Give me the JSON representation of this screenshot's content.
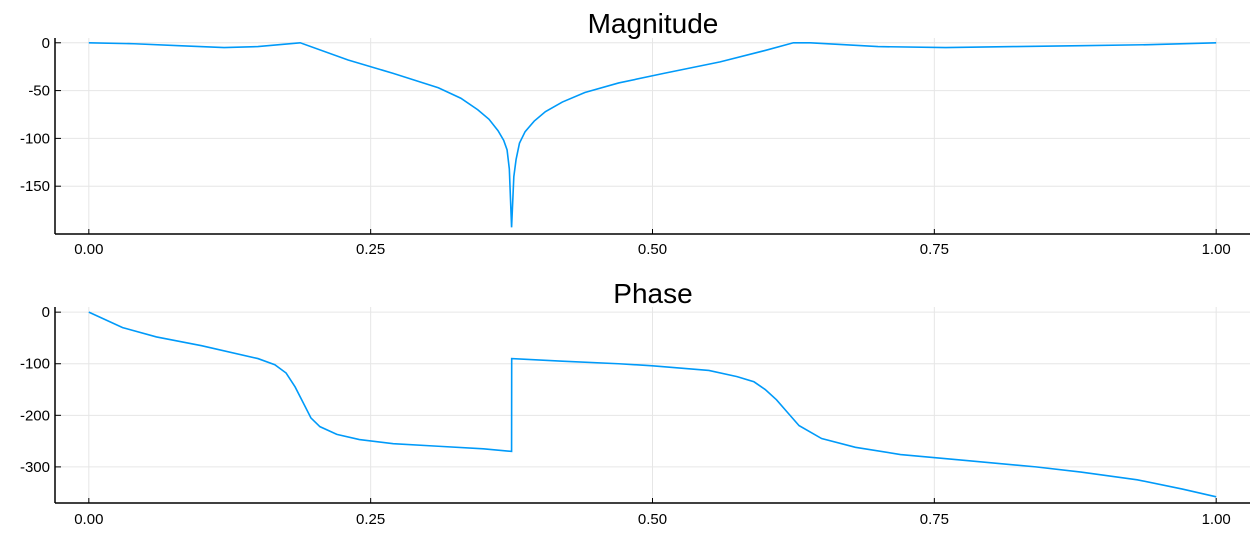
{
  "chart_data": [
    {
      "type": "line",
      "title": "Magnitude",
      "xlabel": "",
      "ylabel": "",
      "xlim": [
        -0.03,
        1.03
      ],
      "ylim": [
        -200,
        5
      ],
      "xticks": [
        0,
        0.25,
        0.5,
        0.75,
        1.0
      ],
      "xtick_labels": [
        "0.00",
        "0.25",
        "0.50",
        "0.75",
        "1.00"
      ],
      "yticks": [
        0,
        -50,
        -100,
        -150
      ],
      "ytick_labels": [
        "0",
        "-50",
        "-100",
        "-150"
      ],
      "grid": true,
      "color": "#009af9",
      "series": [
        {
          "name": "magnitude",
          "x": [
            0.0,
            0.04,
            0.08,
            0.12,
            0.15,
            0.1875,
            0.23,
            0.27,
            0.31,
            0.33,
            0.345,
            0.355,
            0.363,
            0.368,
            0.371,
            0.373,
            0.375,
            0.377,
            0.379,
            0.382,
            0.387,
            0.395,
            0.405,
            0.42,
            0.44,
            0.47,
            0.51,
            0.56,
            0.6,
            0.625,
            0.64,
            0.7,
            0.76,
            0.82,
            0.88,
            0.94,
            1.0
          ],
          "values": [
            0,
            -1,
            -3,
            -5,
            -4,
            0,
            -18,
            -32,
            -47,
            -58,
            -70,
            -80,
            -92,
            -102,
            -112,
            -132,
            -193,
            -140,
            -122,
            -105,
            -93,
            -82,
            -72,
            -62,
            -52,
            -42,
            -32,
            -20,
            -8,
            0,
            0,
            -4,
            -5,
            -4,
            -3,
            -2,
            0
          ]
        }
      ]
    },
    {
      "type": "line",
      "title": "Phase",
      "xlabel": "",
      "ylabel": "",
      "xlim": [
        -0.03,
        1.03
      ],
      "ylim": [
        -370,
        10
      ],
      "xticks": [
        0,
        0.25,
        0.5,
        0.75,
        1.0
      ],
      "xtick_labels": [
        "0.00",
        "0.25",
        "0.50",
        "0.75",
        "1.00"
      ],
      "yticks": [
        0,
        -100,
        -200,
        -300
      ],
      "ytick_labels": [
        "0",
        "-100",
        "-200",
        "-300"
      ],
      "grid": true,
      "color": "#009af9",
      "series": [
        {
          "name": "phase",
          "x": [
            0.0,
            0.03,
            0.06,
            0.1,
            0.15,
            0.165,
            0.175,
            0.183,
            0.19,
            0.197,
            0.205,
            0.22,
            0.24,
            0.27,
            0.31,
            0.35,
            0.375,
            0.3751,
            0.42,
            0.47,
            0.5,
            0.55,
            0.575,
            0.59,
            0.6,
            0.61,
            0.62,
            0.63,
            0.65,
            0.68,
            0.72,
            0.78,
            0.84,
            0.88,
            0.93,
            0.97,
            1.0
          ],
          "values": [
            0,
            -30,
            -48,
            -65,
            -90,
            -102,
            -118,
            -145,
            -175,
            -205,
            -222,
            -237,
            -247,
            -255,
            -260,
            -265,
            -270,
            -90,
            -95,
            -100,
            -104,
            -113,
            -125,
            -135,
            -150,
            -170,
            -195,
            -220,
            -245,
            -262,
            -276,
            -288,
            -300,
            -310,
            -325,
            -343,
            -358
          ]
        }
      ]
    }
  ]
}
